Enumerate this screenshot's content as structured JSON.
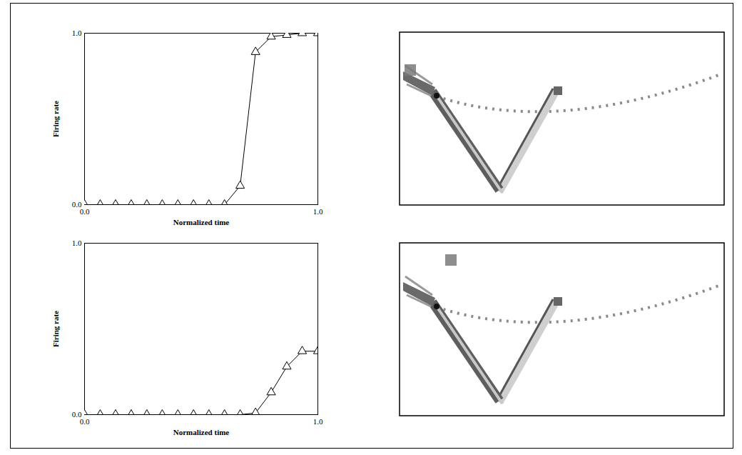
{
  "chart_data": [
    {
      "type": "line",
      "xlabel": "Normalized time",
      "ylabel": "Firing rate",
      "x": [
        0,
        0.067,
        0.133,
        0.2,
        0.267,
        0.333,
        0.4,
        0.467,
        0.533,
        0.6,
        0.667,
        0.733,
        0.8,
        0.867,
        0.933,
        1
      ],
      "values": [
        0,
        0,
        0,
        0,
        0,
        0,
        0,
        0,
        0,
        0,
        0.11,
        0.89,
        0.98,
        0.99,
        1.0,
        1.0
      ],
      "xlim": [
        0,
        1
      ],
      "ylim": [
        0,
        1
      ],
      "xticks": [
        {
          "value": 0,
          "label": "0.0"
        },
        {
          "value": 1,
          "label": "1.0"
        }
      ],
      "yticks": [
        {
          "value": 0,
          "label": "0.0"
        },
        {
          "value": 1,
          "label": "1.0"
        }
      ],
      "color": "#000000",
      "marker": "triangle",
      "grid": false
    },
    {
      "type": "line",
      "xlabel": "Normalized time",
      "ylabel": "Firing rate",
      "x": [
        0,
        0.067,
        0.133,
        0.2,
        0.267,
        0.333,
        0.4,
        0.467,
        0.533,
        0.6,
        0.667,
        0.733,
        0.8,
        0.867,
        0.933,
        1
      ],
      "values": [
        0,
        0,
        0,
        0,
        0,
        0,
        0,
        0,
        0,
        0,
        0,
        0.01,
        0.13,
        0.28,
        0.37,
        0.37
      ],
      "xlim": [
        0,
        1
      ],
      "ylim": [
        0,
        1
      ],
      "xticks": [
        {
          "value": 0,
          "label": "0.0"
        },
        {
          "value": 1,
          "label": "1.0"
        }
      ],
      "yticks": [
        {
          "value": 0,
          "label": "0.0"
        },
        {
          "value": 1,
          "label": "1.0"
        }
      ],
      "color": "#000000",
      "marker": "triangle",
      "grid": false
    }
  ]
}
